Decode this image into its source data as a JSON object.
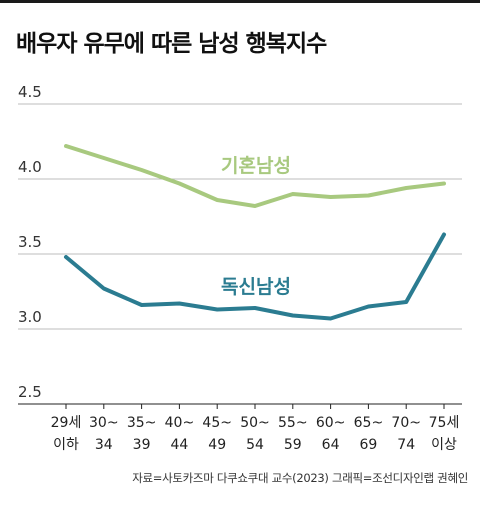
{
  "title": "배우자 유무에 따른 남성 행복지수",
  "source": "자료=사토카즈마 다쿠쇼쿠대 교수(2023)   그래픽=조선디자인랩 권혜인",
  "colors": {
    "married": "#a8c97f",
    "single": "#2b7c91",
    "grid": "#bdbdbd"
  },
  "chart_data": {
    "type": "line",
    "categories": [
      [
        "29세",
        "이하"
      ],
      [
        "30~",
        "34"
      ],
      [
        "35~",
        "39"
      ],
      [
        "40~",
        "44"
      ],
      [
        "45~",
        "49"
      ],
      [
        "50~",
        "54"
      ],
      [
        "55~",
        "59"
      ],
      [
        "60~",
        "64"
      ],
      [
        "65~",
        "69"
      ],
      [
        "70~",
        "74"
      ],
      [
        "75세",
        "이상"
      ]
    ],
    "yticks": [
      "4.5",
      "4.0",
      "3.5",
      "3.0",
      "2.5"
    ],
    "ylim": [
      2.5,
      4.5
    ],
    "grid": true,
    "series": [
      {
        "name": "기혼남성",
        "values": [
          4.22,
          4.14,
          4.06,
          3.97,
          3.86,
          3.82,
          3.9,
          3.88,
          3.89,
          3.94,
          3.97
        ]
      },
      {
        "name": "독신남성",
        "values": [
          3.48,
          3.27,
          3.16,
          3.17,
          3.13,
          3.14,
          3.09,
          3.07,
          3.15,
          3.18,
          3.63
        ]
      }
    ]
  }
}
